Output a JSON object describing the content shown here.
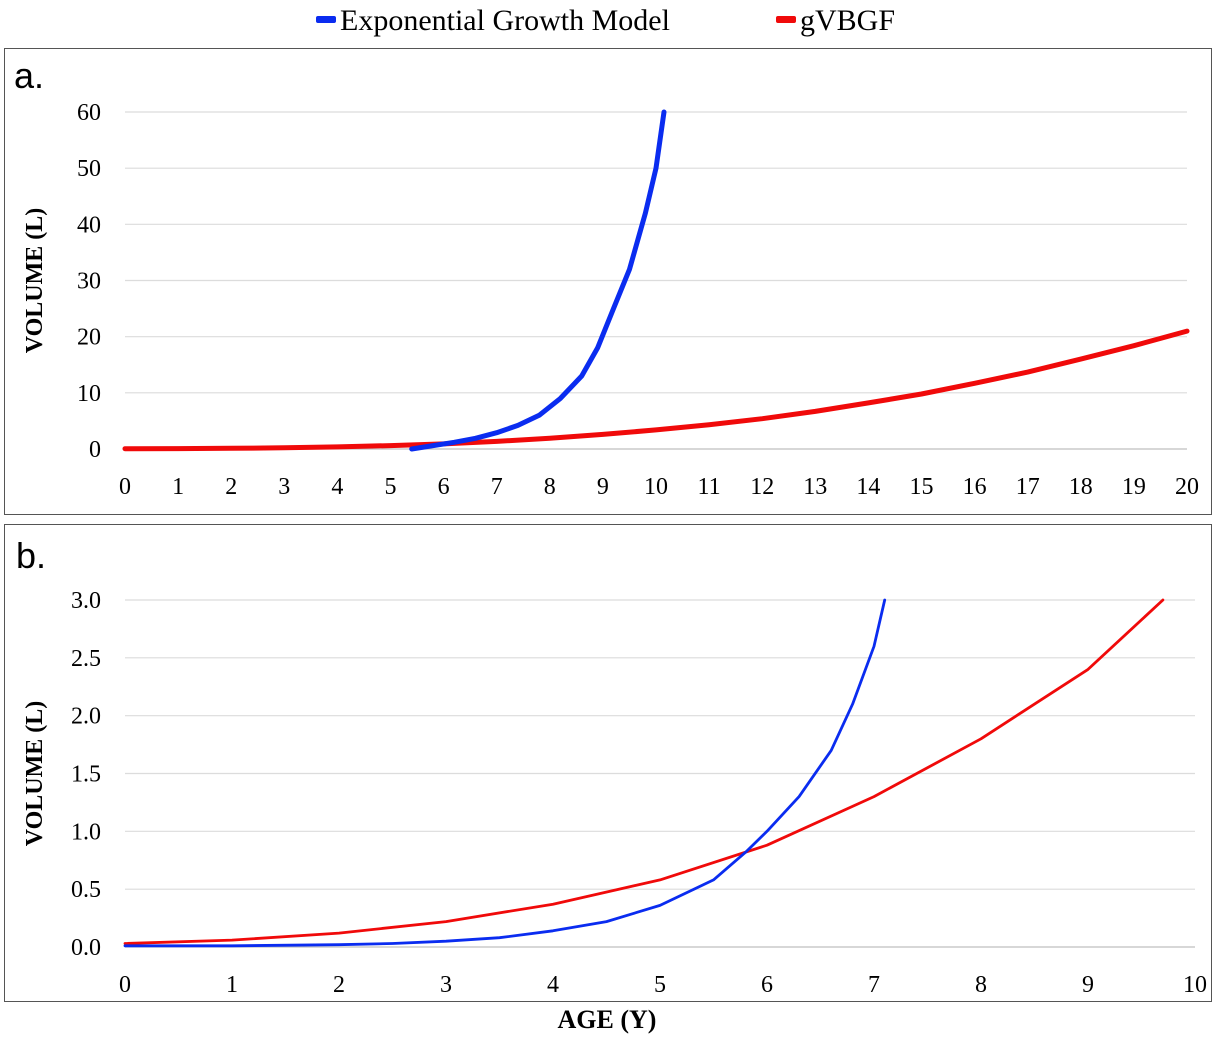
{
  "legend": [
    {
      "label": "Exponential Growth Model",
      "color": "#0a2cf0"
    },
    {
      "label": "gVBGF",
      "color": "#f00a0a"
    }
  ],
  "xlabel_shared": "AGE (Y)",
  "chart_data": [
    {
      "type": "line",
      "panel_label": "a.",
      "ylabel": "VOLUME (L)",
      "xlim": [
        0,
        20
      ],
      "ylim": [
        0,
        60
      ],
      "x_ticks": [
        "0",
        "1",
        "2",
        "3",
        "4",
        "5",
        "6",
        "7",
        "8",
        "9",
        "10",
        "11",
        "12",
        "13",
        "14",
        "15",
        "16",
        "17",
        "18",
        "19",
        "20"
      ],
      "y_ticks": [
        "0",
        "10",
        "20",
        "30",
        "40",
        "50",
        "60"
      ],
      "grid": "horizontal",
      "series": [
        {
          "name": "Exponential Growth Model",
          "color": "#0a2cf0",
          "points": [
            [
              5.4,
              0
            ],
            [
              5.8,
              0.6
            ],
            [
              6.2,
              1.2
            ],
            [
              6.6,
              1.9
            ],
            [
              7.0,
              2.9
            ],
            [
              7.4,
              4.2
            ],
            [
              7.8,
              6.0
            ],
            [
              8.2,
              9.0
            ],
            [
              8.6,
              13.0
            ],
            [
              8.9,
              18.0
            ],
            [
              9.2,
              25.0
            ],
            [
              9.5,
              32.0
            ],
            [
              9.8,
              42.0
            ],
            [
              10.0,
              50.0
            ],
            [
              10.15,
              60.0
            ]
          ]
        },
        {
          "name": "gVBGF",
          "color": "#f00a0a",
          "points": [
            [
              0,
              0.05
            ],
            [
              1,
              0.08
            ],
            [
              2,
              0.13
            ],
            [
              3,
              0.22
            ],
            [
              4,
              0.37
            ],
            [
              5,
              0.6
            ],
            [
              6,
              0.9
            ],
            [
              7,
              1.35
            ],
            [
              8,
              1.9
            ],
            [
              9,
              2.6
            ],
            [
              10,
              3.4
            ],
            [
              11,
              4.3
            ],
            [
              12,
              5.4
            ],
            [
              13,
              6.7
            ],
            [
              14,
              8.2
            ],
            [
              15,
              9.8
            ],
            [
              16,
              11.7
            ],
            [
              17,
              13.7
            ],
            [
              18,
              16.0
            ],
            [
              19,
              18.4
            ],
            [
              20,
              21.0
            ]
          ]
        }
      ]
    },
    {
      "type": "line",
      "panel_label": "b.",
      "ylabel": "VOLUME (L)",
      "xlabel": "AGE (Y)",
      "xlim": [
        0,
        10
      ],
      "ylim": [
        0,
        3.0
      ],
      "x_ticks": [
        "0",
        "1",
        "2",
        "3",
        "4",
        "5",
        "6",
        "7",
        "8",
        "9",
        "10"
      ],
      "y_ticks": [
        "0.0",
        "0.5",
        "1.0",
        "1.5",
        "2.0",
        "2.5",
        "3.0"
      ],
      "grid": "horizontal",
      "series": [
        {
          "name": "Exponential Growth Model",
          "color": "#0a2cf0",
          "points": [
            [
              0,
              0.01
            ],
            [
              1,
              0.01
            ],
            [
              2,
              0.02
            ],
            [
              2.5,
              0.03
            ],
            [
              3,
              0.05
            ],
            [
              3.5,
              0.08
            ],
            [
              4,
              0.14
            ],
            [
              4.5,
              0.22
            ],
            [
              5,
              0.36
            ],
            [
              5.5,
              0.58
            ],
            [
              5.8,
              0.82
            ],
            [
              6.0,
              1.0
            ],
            [
              6.3,
              1.3
            ],
            [
              6.6,
              1.7
            ],
            [
              6.8,
              2.1
            ],
            [
              7.0,
              2.6
            ],
            [
              7.1,
              3.0
            ]
          ]
        },
        {
          "name": "gVBGF",
          "color": "#f00a0a",
          "points": [
            [
              0,
              0.03
            ],
            [
              1,
              0.06
            ],
            [
              2,
              0.12
            ],
            [
              3,
              0.22
            ],
            [
              4,
              0.37
            ],
            [
              5,
              0.58
            ],
            [
              6,
              0.88
            ],
            [
              7,
              1.3
            ],
            [
              8,
              1.8
            ],
            [
              9,
              2.4
            ],
            [
              9.7,
              3.0
            ]
          ]
        }
      ]
    }
  ]
}
